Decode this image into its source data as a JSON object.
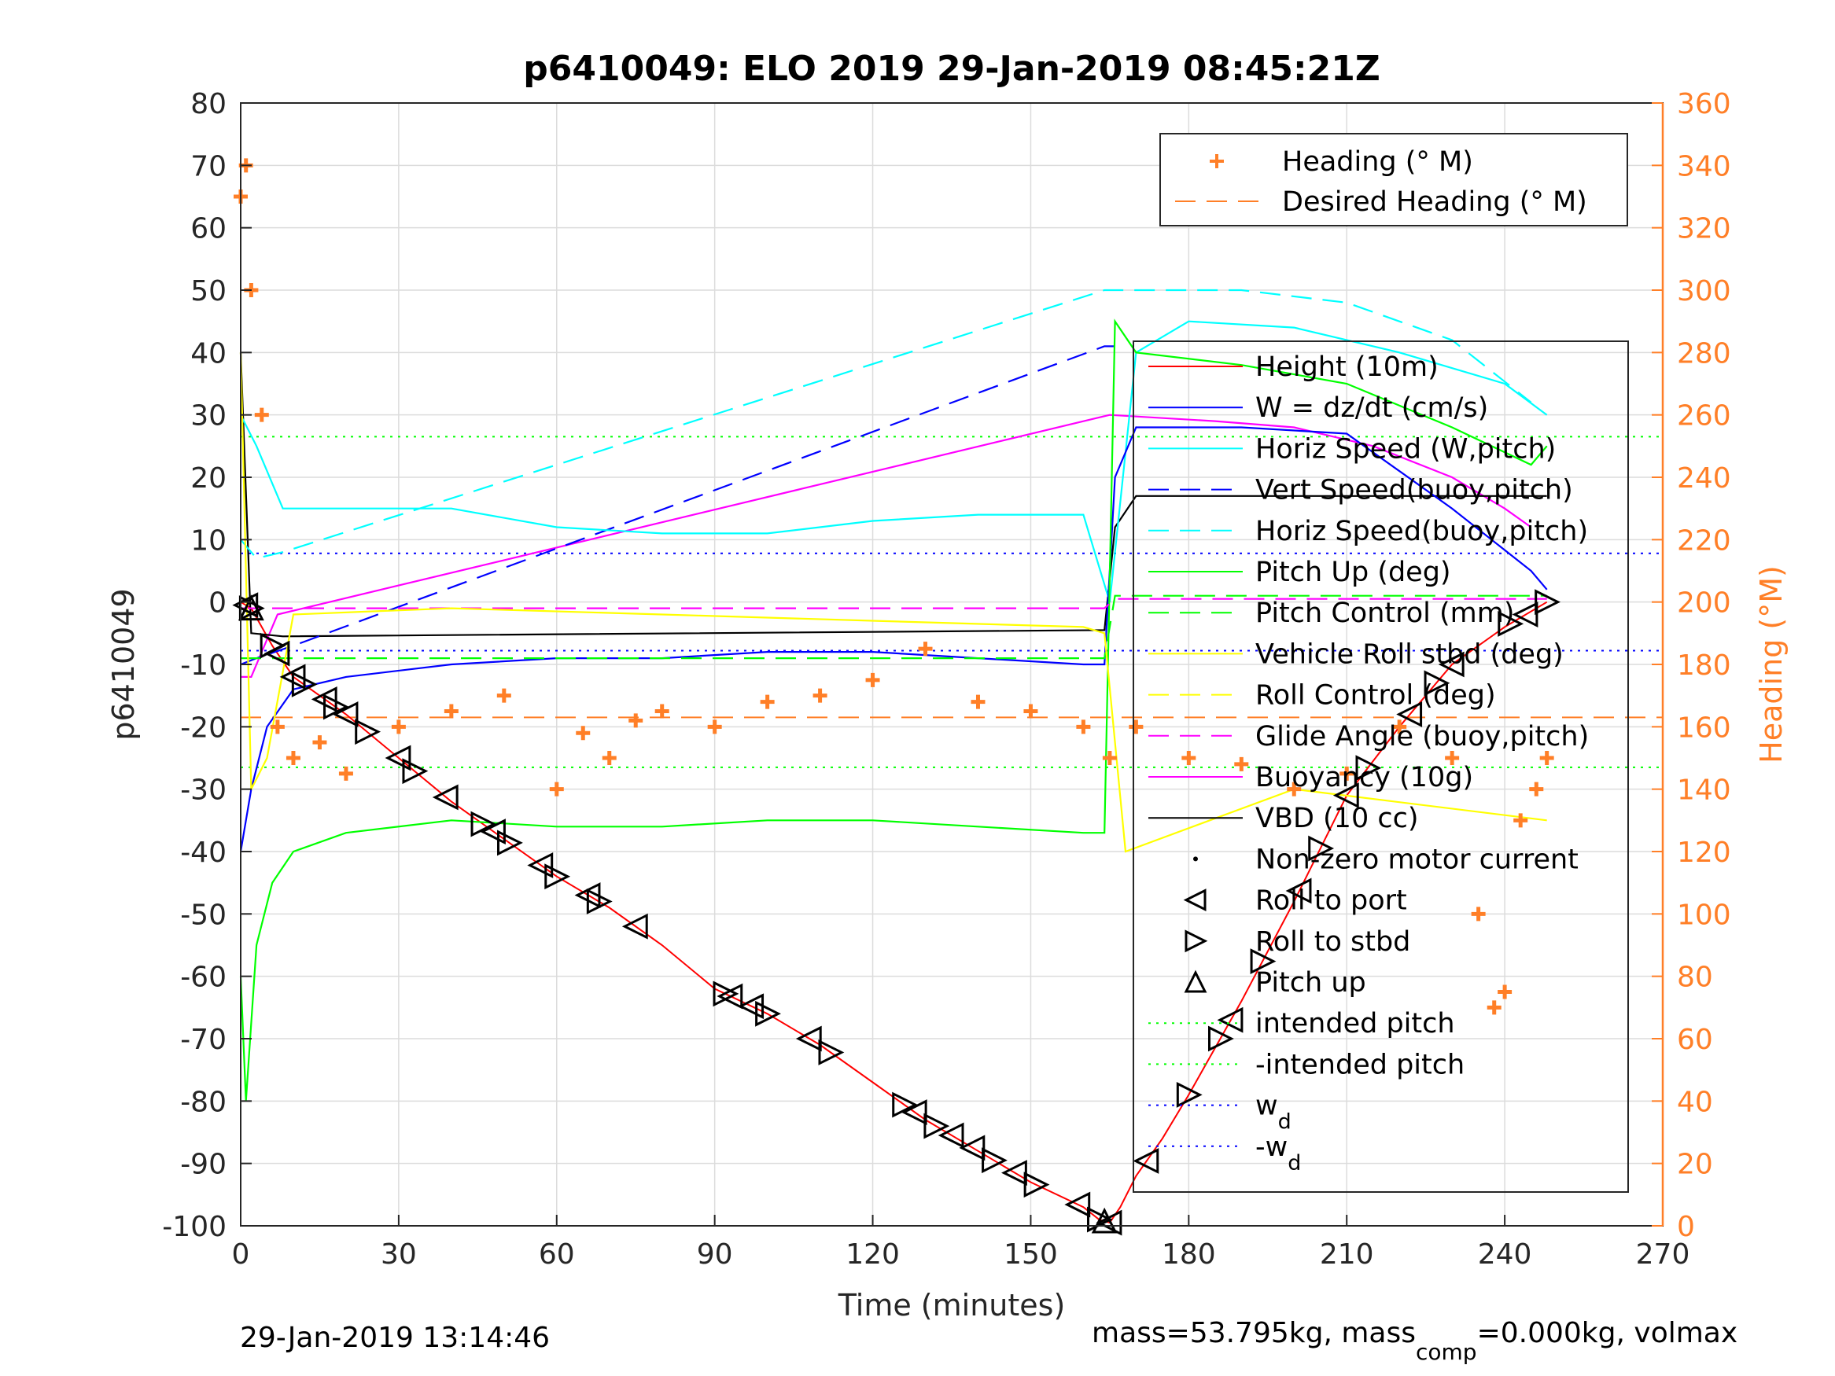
{
  "chart_data": {
    "type": "line",
    "title": "p6410049: ELO 2019 29-Jan-2019 08:45:21Z",
    "xlabel": "Time (minutes)",
    "ylabel_left": "p6410049",
    "ylabel_right": "Heading (°M)",
    "xlim": [
      0,
      270
    ],
    "ylim_left": [
      -100,
      80
    ],
    "ylim_right": [
      0,
      360
    ],
    "x_ticks": [
      "0",
      "30",
      "60",
      "90",
      "120",
      "150",
      "180",
      "210",
      "240",
      "270"
    ],
    "y_left_ticks": [
      "80",
      "70",
      "60",
      "50",
      "40",
      "30",
      "20",
      "10",
      "0",
      "-10",
      "-20",
      "-30",
      "-40",
      "-50",
      "-60",
      "-70",
      "-80",
      "-90",
      "-100"
    ],
    "y_right_ticks": [
      "360",
      "340",
      "320",
      "300",
      "280",
      "260",
      "240",
      "220",
      "200",
      "180",
      "160",
      "140",
      "120",
      "100",
      "80",
      "60",
      "40",
      "20",
      "0"
    ],
    "grid": true,
    "colors": {
      "heading": "#ff7f27",
      "height": "#ff0000",
      "w": "#0000ff",
      "cyan": "#00ffff",
      "green": "#00ff00",
      "yellow": "#ffff00",
      "magenta": "#ff00ff",
      "black": "#000000"
    },
    "legend_heading": [
      {
        "label": "Heading (° M)",
        "style": "plus",
        "color": "#ff7f27"
      },
      {
        "label": "Desired Heading (° M)",
        "style": "dashed",
        "color": "#ff7f27"
      }
    ],
    "legend_main": [
      {
        "label": "Height (10m)",
        "style": "solid",
        "color": "#ff0000"
      },
      {
        "label": "W = dz/dt (cm/s)",
        "style": "solid",
        "color": "#0000ff"
      },
      {
        "label": "Horiz Speed (W,pitch)",
        "style": "solid",
        "color": "#00ffff"
      },
      {
        "label": "Vert Speed(buoy,pitch)",
        "style": "dashed",
        "color": "#0000ff"
      },
      {
        "label": "Horiz Speed(buoy,pitch)",
        "style": "dashed",
        "color": "#00ffff"
      },
      {
        "label": "Pitch Up (deg)",
        "style": "solid",
        "color": "#00ff00"
      },
      {
        "label": "Pitch Control (mm)",
        "style": "dashed",
        "color": "#00ff00"
      },
      {
        "label": "Vehicle Roll stbd (deg)",
        "style": "solid",
        "color": "#ffff00"
      },
      {
        "label": "Roll Control (deg)",
        "style": "dashed",
        "color": "#ffff00"
      },
      {
        "label": "Glide Angle (buoy,pitch)",
        "style": "dashed",
        "color": "#ff00ff"
      },
      {
        "label": "Buoyancy (10g)",
        "style": "solid",
        "color": "#ff00ff"
      },
      {
        "label": "VBD (10 cc)",
        "style": "solid",
        "color": "#000000"
      },
      {
        "label": "Non-zero motor current",
        "style": "dot",
        "color": "#000000"
      },
      {
        "label": "Roll to port",
        "style": "tri-left",
        "color": "#000000"
      },
      {
        "label": "Roll to stbd",
        "style": "tri-right",
        "color": "#000000"
      },
      {
        "label": "Pitch up",
        "style": "tri-up",
        "color": "#000000"
      },
      {
        "label": "intended pitch",
        "style": "dotted",
        "color": "#00ff00"
      },
      {
        "label": "-intended pitch",
        "style": "dotted",
        "color": "#00ff00"
      },
      {
        "label": "w",
        "sub": "d",
        "style": "dotted",
        "color": "#0000ff"
      },
      {
        "label": "-w",
        "sub": "d",
        "style": "dotted",
        "color": "#0000ff"
      }
    ],
    "series": [
      {
        "name": "Height (10m)",
        "axis": "left",
        "x": [
          0,
          2,
          6,
          10,
          20,
          30,
          40,
          50,
          60,
          70,
          80,
          90,
          100,
          110,
          120,
          130,
          140,
          150,
          160,
          163,
          165,
          167,
          170,
          175,
          180,
          190,
          200,
          210,
          220,
          230,
          240,
          248
        ],
        "y": [
          0,
          -1,
          -7,
          -12,
          -18,
          -25,
          -32,
          -38,
          -44,
          -49,
          -55,
          -62,
          -66,
          -71,
          -77,
          -83,
          -88,
          -93,
          -97,
          -99,
          -99.5,
          -97,
          -92,
          -86,
          -79,
          -64,
          -48,
          -31,
          -20,
          -10,
          -4,
          0
        ]
      },
      {
        "name": "Buoyancy (10g)",
        "axis": "left",
        "x": [
          0,
          2,
          7,
          165,
          185,
          200,
          215,
          230,
          240,
          245
        ],
        "y": [
          -12,
          -12,
          -2,
          30,
          29,
          28,
          25,
          20,
          15,
          12
        ]
      },
      {
        "name": "VBD (10 cc)",
        "axis": "left",
        "x": [
          0,
          2,
          8,
          164,
          166,
          170,
          248
        ],
        "y": [
          40,
          -5,
          -5.5,
          -4.5,
          12,
          17,
          17
        ]
      },
      {
        "name": "Vert Speed(buoy,pitch)",
        "axis": "left",
        "x": [
          0,
          3,
          10,
          164,
          166
        ],
        "y": [
          -10,
          -9,
          -7,
          41,
          41
        ]
      },
      {
        "name": "Horiz Speed(buoy,pitch)",
        "axis": "left",
        "x": [
          0,
          3,
          8,
          164,
          168,
          190,
          210,
          230,
          245
        ],
        "y": [
          10,
          7,
          8,
          50,
          50,
          50,
          48,
          42,
          32
        ]
      },
      {
        "name": "Horiz Speed (W,pitch)",
        "axis": "left",
        "x": [
          0,
          3,
          8,
          20,
          40,
          60,
          80,
          100,
          120,
          140,
          160,
          165,
          170,
          180,
          200,
          220,
          240,
          248
        ],
        "y": [
          30,
          25,
          15,
          15,
          15,
          12,
          11,
          11,
          13,
          14,
          14,
          0,
          40,
          45,
          44,
          40,
          35,
          30
        ]
      },
      {
        "name": "W = dz/dt (cm/s)",
        "axis": "left",
        "x": [
          0,
          2,
          5,
          10,
          20,
          40,
          60,
          80,
          100,
          120,
          140,
          160,
          164,
          166,
          170,
          190,
          210,
          230,
          245,
          248
        ],
        "y": [
          -40,
          -30,
          -20,
          -14,
          -12,
          -10,
          -9,
          -9,
          -8,
          -8,
          -9,
          -10,
          -10,
          20,
          28,
          28,
          27,
          15,
          5,
          2
        ]
      },
      {
        "name": "Pitch Up (deg)",
        "axis": "left",
        "x": [
          0,
          1,
          3,
          6,
          10,
          20,
          40,
          60,
          80,
          100,
          120,
          140,
          160,
          164,
          166,
          170,
          190,
          210,
          230,
          245,
          248
        ],
        "y": [
          -60,
          -80,
          -55,
          -45,
          -40,
          -37,
          -35,
          -36,
          -36,
          -35,
          -35,
          -36,
          -37,
          -37,
          45,
          40,
          38,
          35,
          28,
          22,
          25
        ]
      },
      {
        "name": "Pitch Control (mm)",
        "axis": "left",
        "x": [
          0,
          164,
          166,
          248
        ],
        "y": [
          -9,
          -9,
          1,
          1
        ]
      },
      {
        "name": "Glide Angle (buoy,pitch)",
        "axis": "left",
        "x": [
          0,
          164,
          166,
          248
        ],
        "y": [
          -1,
          -1,
          0.5,
          0.5
        ]
      },
      {
        "name": "Vehicle Roll stbd (deg)",
        "axis": "left",
        "x": [
          0,
          2,
          5,
          10,
          40,
          80,
          120,
          160,
          164,
          168,
          200,
          248
        ],
        "y": [
          40,
          -30,
          -25,
          -2,
          -1,
          -2,
          -3,
          -4,
          -5,
          -40,
          -30,
          -35
        ]
      },
      {
        "name": "Heading (° M)",
        "axis": "right",
        "x": [
          0,
          1,
          2,
          4,
          7,
          10,
          15,
          20,
          30,
          40,
          50,
          60,
          65,
          70,
          75,
          80,
          90,
          100,
          110,
          120,
          130,
          140,
          150,
          160,
          165,
          170,
          180,
          190,
          200,
          210,
          220,
          230,
          235,
          238,
          240,
          243,
          246,
          248
        ],
        "y": [
          330,
          340,
          300,
          260,
          160,
          150,
          155,
          145,
          160,
          165,
          170,
          140,
          158,
          150,
          162,
          165,
          160,
          168,
          170,
          175,
          185,
          168,
          165,
          160,
          150,
          160,
          150,
          148,
          140,
          145,
          160,
          150,
          100,
          70,
          75,
          130,
          140,
          150
        ]
      }
    ],
    "constant_lines": [
      {
        "name": "intended pitch",
        "axis": "left",
        "y": 26.5,
        "color": "#00ff00"
      },
      {
        "name": "-intended pitch",
        "axis": "left",
        "y": -26.5,
        "color": "#00ff00"
      },
      {
        "name": "w_d",
        "axis": "left",
        "y": 7.8,
        "color": "#0000ff"
      },
      {
        "name": "-w_d",
        "axis": "left",
        "y": -7.8,
        "color": "#0000ff"
      },
      {
        "name": "Desired Heading (° M)",
        "axis": "right",
        "y": 163,
        "color": "#ff7f27"
      }
    ],
    "markers": {
      "roll_to_port_x": [
        1,
        7,
        10,
        16,
        20,
        30,
        39,
        48,
        57,
        66,
        75,
        93,
        97,
        108,
        128,
        135,
        139,
        147,
        159,
        165,
        172,
        188,
        201,
        210,
        222,
        230,
        244
      ],
      "roll_to_stbd_x": [
        2,
        6,
        12,
        18,
        24,
        33,
        46,
        51,
        60,
        68,
        92,
        100,
        112,
        126,
        132,
        143,
        151,
        163,
        180,
        186,
        194,
        205,
        214,
        227,
        241,
        248
      ],
      "pitch_up_x": [
        2,
        164
      ]
    }
  },
  "footer": {
    "left": "29-Jan-2019 13:14:46",
    "right_parts": [
      "mass=53.795kg, mass",
      "comp",
      "=0.000kg, volmax"
    ]
  }
}
